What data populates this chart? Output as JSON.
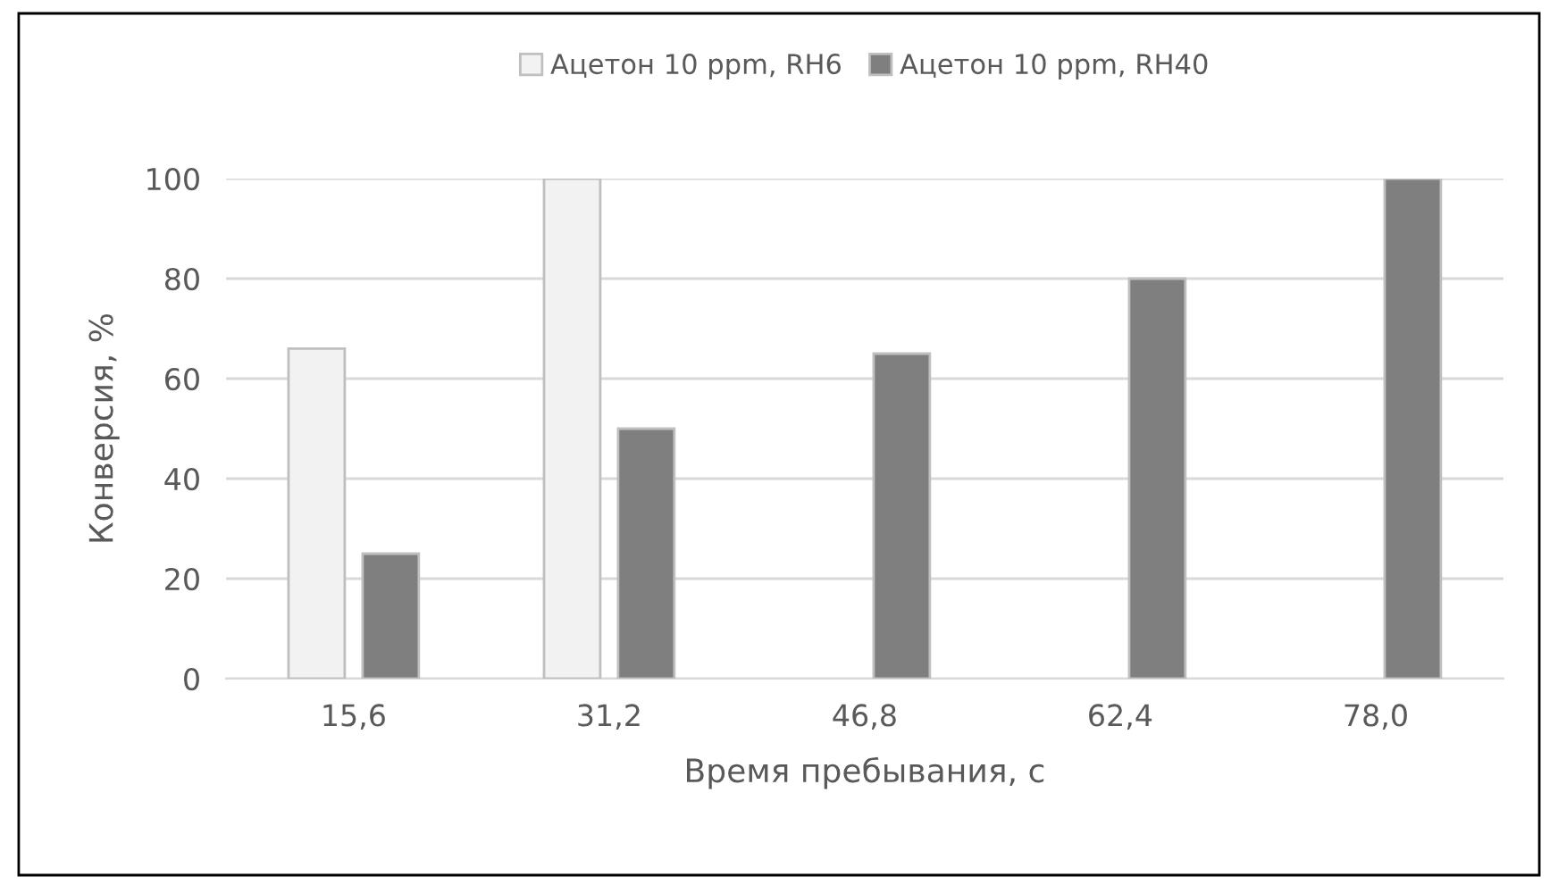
{
  "chart_data": {
    "type": "bar",
    "xlabel": "Время пребывания, с",
    "ylabel": "Конверсия, %",
    "categories": [
      "15,6",
      "31,2",
      "46,8",
      "62,4",
      "78,0"
    ],
    "series": [
      {
        "name": "Ацетон 10 ppm, RH6",
        "color": "#f2f2f2",
        "values": [
          66,
          100,
          null,
          null,
          null
        ]
      },
      {
        "name": "Ацетон 10 ppm, RH40",
        "color": "#7f7f7f",
        "values": [
          25,
          50,
          65,
          80,
          100
        ]
      }
    ],
    "ylim": [
      0,
      100
    ],
    "yticks": [
      0,
      20,
      40,
      60,
      80,
      100
    ],
    "grid": "y",
    "legend": "top"
  }
}
